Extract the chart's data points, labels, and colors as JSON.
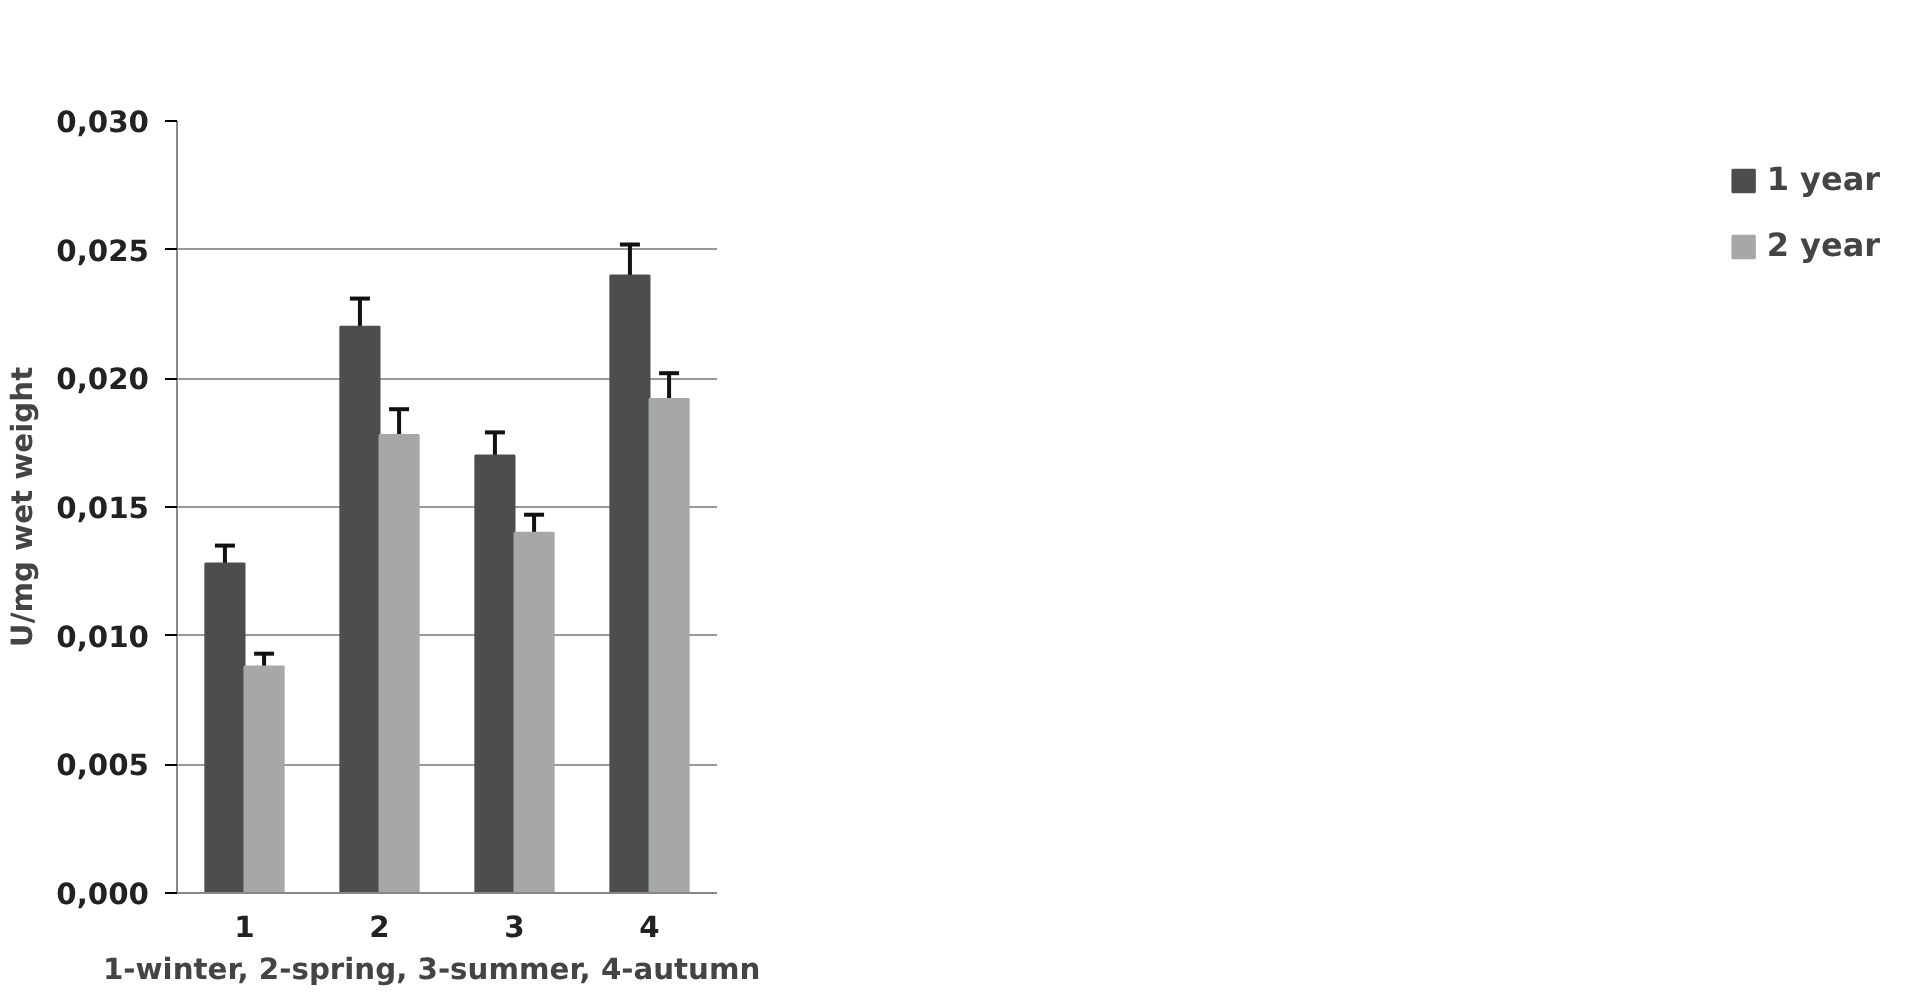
{
  "chart_data": {
    "type": "bar",
    "xlabel": "1-winter,  2-spring,  3-summer,  4-autumn",
    "ylabel": "U/mg wet weight",
    "categories": [
      "1",
      "2",
      "3",
      "4"
    ],
    "series": [
      {
        "name": "1 year",
        "color": "#4d4d4f",
        "values": [
          0.0128,
          0.022,
          0.017,
          0.024
        ],
        "errors": [
          0.0007,
          0.0011,
          0.0009,
          0.0012
        ]
      },
      {
        "name": "2 year",
        "color": "#a6a7a9",
        "values": [
          0.0088,
          0.0178,
          0.014,
          0.0192
        ],
        "errors": [
          0.0005,
          0.001,
          0.0007,
          0.001
        ]
      }
    ],
    "ylim": [
      0,
      0.03
    ],
    "yticks": [
      {
        "value": 0,
        "label": "0,000"
      },
      {
        "value": 0.005,
        "label": "0,005"
      },
      {
        "value": 0.01,
        "label": "0,010"
      },
      {
        "value": 0.015,
        "label": "0,015"
      },
      {
        "value": 0.02,
        "label": "0,020"
      },
      {
        "value": 0.025,
        "label": "0,025"
      },
      {
        "value": 0.03,
        "label": "0,030"
      }
    ],
    "grid": "y",
    "legend": "right"
  }
}
